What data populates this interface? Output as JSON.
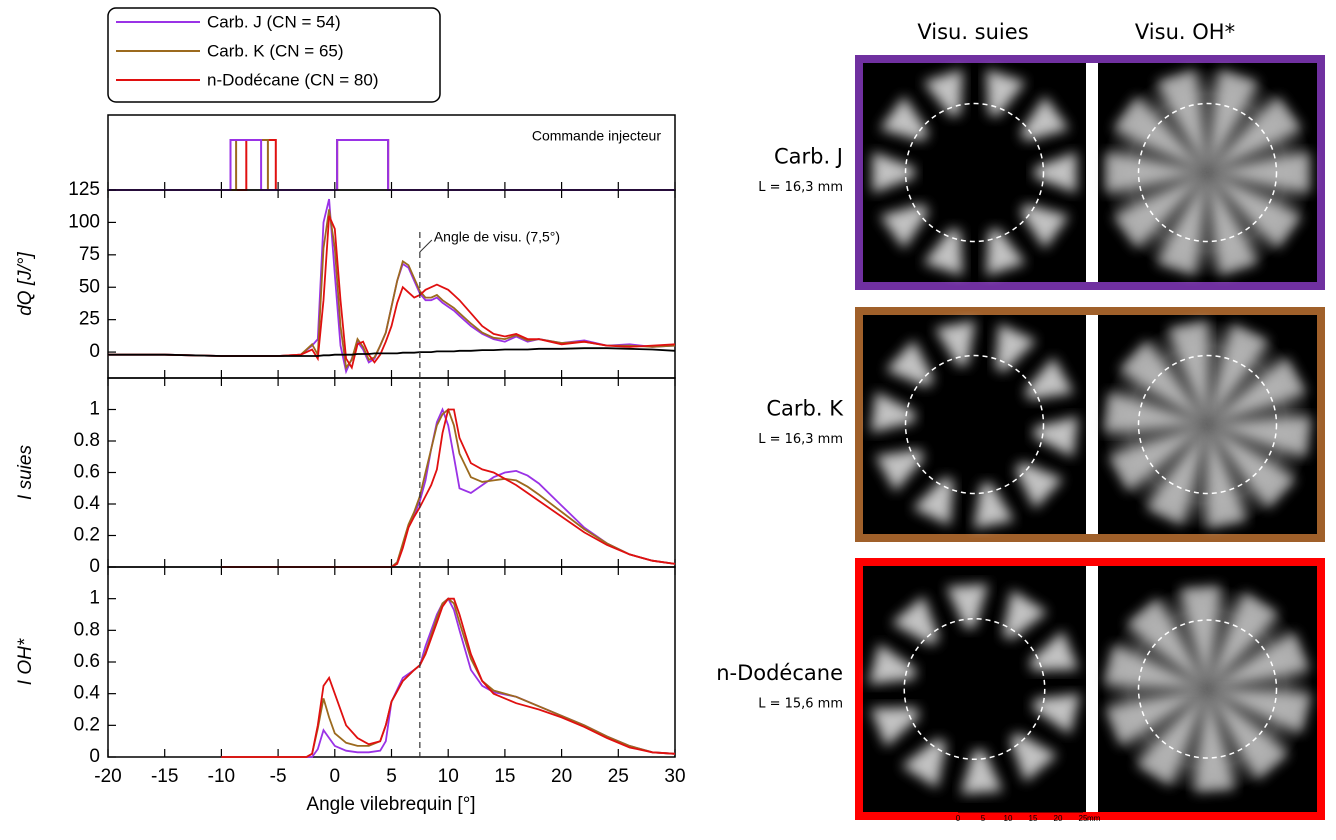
{
  "chart_data": {
    "type": "line",
    "xlabel": "Angle vilebrequin [°]",
    "xlim": [
      -20,
      30
    ],
    "xticks": [
      -20,
      -15,
      -10,
      -5,
      0,
      5,
      10,
      15,
      20,
      25,
      30
    ],
    "vline": 7.5,
    "vline_label": "Angle de visu. (7,5°)",
    "legend": "top-left",
    "panels": [
      {
        "type": "step",
        "title": "Commande injecteur",
        "ylim": [
          0,
          1.5
        ],
        "series": [
          {
            "name": "Carb. J (CN = 54)",
            "color": "#9a32e6",
            "x": [
              -20,
              -9.2,
              -9.2,
              -6.5,
              -6.5,
              0.2,
              0.2,
              4.7,
              4.7,
              30
            ],
            "values": [
              0,
              0,
              1,
              1,
              0,
              0,
              1,
              1,
              0,
              0
            ]
          },
          {
            "name": "Carb. K (CN = 65)",
            "color": "#9c6a1e",
            "x": [
              -20,
              -8.7,
              -8.7,
              -5.9,
              -5.9,
              0.2,
              0.2,
              4.7,
              4.7,
              30
            ],
            "values": [
              0,
              0,
              1,
              1,
              0,
              0,
              1,
              1,
              0,
              0
            ]
          },
          {
            "name": "n-Dodécane (CN = 80)",
            "color": "#e01010",
            "x": [
              -20,
              -7.8,
              -7.8,
              -5.2,
              -5.2,
              0.2,
              0.2,
              4.7,
              4.7,
              30
            ],
            "values": [
              0,
              0,
              1,
              1,
              0,
              0,
              1,
              1,
              0,
              0
            ]
          }
        ]
      },
      {
        "ylabel": "dQ [J/°]",
        "ylim": [
          -20,
          125
        ],
        "yticks": [
          0,
          25,
          50,
          75,
          100,
          125
        ],
        "x": [
          -20,
          -15,
          -10,
          -5,
          -3,
          -2,
          -1.5,
          -1,
          -0.5,
          0,
          0.5,
          1,
          1.5,
          2,
          2.5,
          3,
          3.5,
          4,
          4.5,
          5,
          5.5,
          6,
          6.5,
          7,
          7.5,
          8,
          8.5,
          9,
          9.5,
          10,
          10.5,
          11,
          12,
          13,
          14,
          15,
          16,
          17,
          18,
          20,
          22,
          24,
          26,
          28,
          30
        ],
        "series": [
          {
            "color": "#000000",
            "values": [
              -2,
              -2,
              -3,
              -3,
              -3,
              -3,
              -3,
              -2.5,
              -2.5,
              -2,
              -2,
              -2,
              -2,
              -1.5,
              -1.5,
              -1.5,
              -1,
              -1,
              -1,
              -1,
              -1,
              -0.5,
              -0.5,
              -0.5,
              0,
              0,
              0,
              0.5,
              0.5,
              0.5,
              0.5,
              1,
              1,
              1.5,
              1.5,
              2,
              2,
              2,
              2.5,
              2.5,
              3,
              3,
              2.5,
              2,
              1
            ]
          },
          {
            "color": "#e01010",
            "values": [
              -2,
              -2,
              -3,
              -3,
              -2,
              2,
              -5,
              40,
              105,
              95,
              40,
              -5,
              -12,
              6,
              8,
              -2,
              -8,
              -2,
              8,
              20,
              38,
              50,
              46,
              42,
              44,
              48,
              50,
              52,
              50,
              48,
              44,
              40,
              30,
              20,
              14,
              12,
              14,
              10,
              10,
              6,
              8,
              5,
              4,
              5,
              6
            ]
          },
          {
            "color": "#9c6a1e",
            "values": [
              -2,
              -2,
              -3,
              -3,
              -2,
              6,
              -2,
              80,
              110,
              80,
              20,
              -12,
              -6,
              10,
              4,
              -6,
              -4,
              5,
              15,
              35,
              55,
              70,
              67,
              57,
              47,
              42,
              42,
              44,
              40,
              37,
              34,
              30,
              22,
              15,
              11,
              10,
              13,
              9,
              10,
              7,
              8,
              5,
              5,
              4,
              5
            ]
          },
          {
            "color": "#9a32e6",
            "values": [
              -2,
              -2,
              -3,
              -3,
              -2,
              5,
              10,
              100,
              118,
              60,
              5,
              -15,
              -5,
              8,
              2,
              -8,
              -5,
              5,
              15,
              35,
              55,
              68,
              65,
              55,
              45,
              40,
              40,
              42,
              38,
              35,
              32,
              28,
              20,
              14,
              10,
              8,
              12,
              8,
              10,
              7,
              9,
              5,
              6,
              4,
              5
            ]
          }
        ]
      },
      {
        "ylabel": "I suies",
        "ylim": [
          0,
          1.2
        ],
        "yticks": [
          0,
          0.2,
          0.4,
          0.6,
          0.8,
          1
        ],
        "x": [
          -20,
          -15,
          -10,
          -5,
          0,
          4,
          5,
          5.5,
          6,
          6.5,
          7,
          7.5,
          8,
          8.5,
          9,
          9.5,
          10,
          10.5,
          11,
          12,
          13,
          14,
          15,
          16,
          17,
          18,
          20,
          22,
          24,
          26,
          28,
          30
        ],
        "series": [
          {
            "color": "#e01010",
            "values": [
              null,
              null,
              0,
              0,
              0,
              0,
              0,
              0.02,
              0.12,
              0.25,
              0.32,
              0.38,
              0.45,
              0.52,
              0.62,
              0.85,
              1.0,
              1.0,
              0.82,
              0.66,
              0.62,
              0.6,
              0.56,
              0.52,
              0.47,
              0.42,
              0.32,
              0.22,
              0.14,
              0.08,
              0.04,
              0.02
            ]
          },
          {
            "color": "#9c6a1e",
            "values": [
              null,
              null,
              0,
              0,
              0,
              0,
              0,
              0.03,
              0.15,
              0.27,
              0.35,
              0.45,
              0.6,
              0.75,
              0.9,
              0.97,
              1.0,
              0.9,
              0.72,
              0.57,
              0.54,
              0.55,
              0.56,
              0.55,
              0.51,
              0.46,
              0.35,
              0.24,
              0.15,
              0.08,
              0.04,
              0.02
            ]
          },
          {
            "color": "#9a32e6",
            "values": [
              null,
              null,
              0,
              0,
              0,
              0,
              0,
              0.03,
              0.14,
              0.26,
              0.33,
              0.42,
              0.55,
              0.75,
              0.92,
              1.0,
              0.9,
              0.7,
              0.5,
              0.47,
              0.52,
              0.57,
              0.6,
              0.61,
              0.58,
              0.53,
              0.39,
              0.25,
              0.15,
              0.08,
              0.04,
              0.02
            ]
          }
        ]
      },
      {
        "ylabel": "I OH*",
        "ylim": [
          0,
          1.2
        ],
        "yticks": [
          0,
          0.2,
          0.4,
          0.6,
          0.8,
          1
        ],
        "x": [
          -20,
          -15,
          -10,
          -5,
          -2.5,
          -2,
          -1.5,
          -1,
          -0.5,
          0,
          1,
          2,
          3,
          4,
          4.5,
          5,
          6,
          7,
          7.5,
          8,
          9,
          9.5,
          10,
          10.5,
          11,
          12,
          13,
          14,
          16,
          18,
          20,
          22,
          24,
          26,
          28,
          30
        ],
        "series": [
          {
            "color": "#e01010",
            "values": [
              null,
              null,
              0,
              0,
              0,
              0.02,
              0.2,
              0.45,
              0.5,
              0.4,
              0.2,
              0.12,
              0.08,
              0.1,
              0.2,
              0.35,
              0.48,
              0.55,
              0.58,
              0.65,
              0.85,
              0.95,
              1.0,
              1.0,
              0.9,
              0.65,
              0.48,
              0.4,
              0.34,
              0.3,
              0.25,
              0.19,
              0.12,
              0.06,
              0.03,
              0.02
            ]
          },
          {
            "color": "#9c6a1e",
            "values": [
              null,
              null,
              0,
              0,
              0,
              0.02,
              0.18,
              0.37,
              0.25,
              0.15,
              0.09,
              0.07,
              0.07,
              0.1,
              0.2,
              0.35,
              0.48,
              0.55,
              0.58,
              0.66,
              0.88,
              0.97,
              1.0,
              0.97,
              0.85,
              0.62,
              0.48,
              0.42,
              0.38,
              0.32,
              0.26,
              0.2,
              0.13,
              0.07,
              0.03,
              0.02
            ]
          },
          {
            "color": "#9a32e6",
            "values": [
              null,
              null,
              0,
              0,
              0,
              0,
              0.05,
              0.17,
              0.12,
              0.07,
              0.04,
              0.03,
              0.03,
              0.04,
              0.1,
              0.35,
              0.5,
              0.55,
              0.58,
              0.7,
              0.9,
              0.97,
              1.0,
              0.93,
              0.8,
              0.55,
              0.45,
              0.41,
              0.38,
              0.32,
              0.26,
              0.2,
              0.13,
              0.07,
              0.03,
              0.02
            ]
          }
        ]
      }
    ]
  },
  "images": {
    "columns": [
      "Visu. suies",
      "Visu. OH*"
    ],
    "rows": [
      {
        "label": "Carb. J",
        "sublabel": "L = 16,3 mm",
        "color": "#7030a0"
      },
      {
        "label": "Carb. K",
        "sublabel": "L = 16,3 mm",
        "color": "#a0602a"
      },
      {
        "label": "n-Dodécane",
        "sublabel": "L = 15,6 mm",
        "color": "#ff0000"
      }
    ],
    "scale_ticks": [
      0,
      5,
      10,
      15,
      20,
      25
    ],
    "scale_unit": "mm"
  }
}
